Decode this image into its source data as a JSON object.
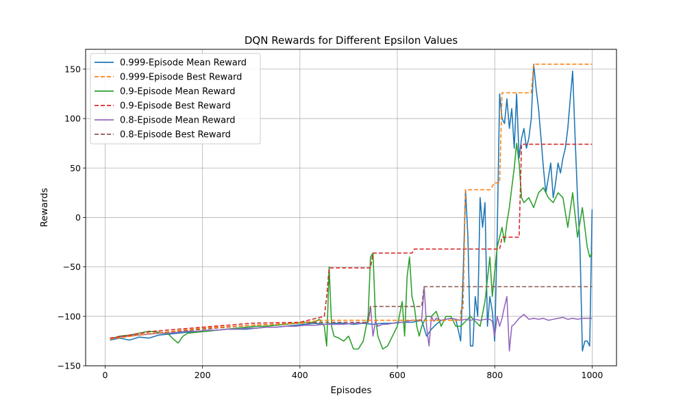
{
  "chart_data": {
    "type": "line",
    "title": "DQN Rewards for Different Epsilon Values",
    "xlabel": "Episodes",
    "ylabel": "Rewards",
    "xlim": [
      -40,
      1050
    ],
    "ylim": [
      -150,
      170
    ],
    "xticks": [
      0,
      200,
      400,
      600,
      800,
      1000
    ],
    "yticks": [
      -150,
      -100,
      -50,
      0,
      50,
      100,
      150
    ],
    "grid": true,
    "legend": "top-left",
    "series": [
      {
        "name": "0.999-Episode Mean Reward",
        "color": "#1f77b4",
        "dash": "solid",
        "x": [
          10,
          30,
          50,
          70,
          90,
          110,
          130,
          150,
          170,
          190,
          210,
          230,
          250,
          270,
          290,
          310,
          330,
          350,
          370,
          390,
          410,
          430,
          450,
          470,
          490,
          510,
          530,
          550,
          570,
          590,
          610,
          630,
          650,
          660,
          670,
          680,
          690,
          700,
          710,
          720,
          730,
          735,
          740,
          745,
          750,
          755,
          760,
          765,
          770,
          775,
          780,
          785,
          790,
          795,
          800,
          805,
          810,
          815,
          820,
          825,
          830,
          835,
          840,
          845,
          850,
          855,
          860,
          865,
          870,
          875,
          880,
          885,
          890,
          895,
          900,
          905,
          910,
          915,
          920,
          925,
          930,
          935,
          940,
          945,
          950,
          955,
          960,
          965,
          970,
          975,
          980,
          985,
          990,
          995,
          1000
        ],
        "y": [
          -124,
          -122,
          -124,
          -121,
          -122,
          -119,
          -118,
          -117,
          -116,
          -115,
          -115,
          -114,
          -113,
          -113,
          -113,
          -112,
          -111,
          -111,
          -110,
          -109,
          -108,
          -107,
          -108,
          -107,
          -107,
          -108,
          -107,
          -108,
          -107,
          -107,
          -106,
          -106,
          -104,
          -120,
          -113,
          -108,
          -104,
          -103,
          -102,
          -103,
          -125,
          -60,
          28,
          -20,
          -130,
          -130,
          -80,
          -100,
          20,
          -10,
          15,
          -110,
          -80,
          -95,
          -125,
          -20,
          125,
          100,
          95,
          120,
          90,
          110,
          70,
          125,
          60,
          80,
          90,
          70,
          80,
          100,
          155,
          130,
          110,
          80,
          50,
          25,
          40,
          55,
          20,
          35,
          55,
          45,
          60,
          70,
          90,
          120,
          148,
          80,
          20,
          -30,
          -135,
          -125,
          -125,
          -130,
          8
        ]
      },
      {
        "name": "0.999-Episode Best Reward",
        "color": "#ff7f0e",
        "dash": "dashed",
        "x": [
          10,
          100,
          200,
          300,
          400,
          440,
          440,
          730,
          730,
          735,
          740,
          790,
          800,
          810,
          815,
          875,
          880,
          1000
        ],
        "y": [
          -123,
          -117,
          -112,
          -109,
          -107,
          -104,
          -104,
          -104,
          -92,
          -92,
          28,
          28,
          35,
          35,
          126,
          126,
          155,
          155
        ]
      },
      {
        "name": "0.9-Episode Mean Reward",
        "color": "#2ca02c",
        "dash": "solid",
        "x": [
          10,
          30,
          50,
          70,
          90,
          110,
          130,
          140,
          150,
          160,
          170,
          190,
          210,
          230,
          250,
          270,
          290,
          310,
          330,
          350,
          370,
          390,
          410,
          430,
          440,
          450,
          455,
          460,
          465,
          470,
          480,
          490,
          500,
          510,
          520,
          530,
          540,
          545,
          550,
          555,
          560,
          570,
          580,
          590,
          600,
          610,
          615,
          620,
          625,
          630,
          635,
          640,
          645,
          650,
          660,
          670,
          680,
          690,
          700,
          710,
          720,
          730,
          740,
          750,
          760,
          770,
          780,
          790,
          795,
          800,
          805,
          810,
          815,
          820,
          825,
          830,
          835,
          840,
          845,
          850,
          855,
          860,
          870,
          880,
          890,
          900,
          910,
          920,
          930,
          940,
          950,
          960,
          970,
          980,
          990,
          995,
          1000
        ],
        "y": [
          -123,
          -120,
          -119,
          -117,
          -115,
          -116,
          -118,
          -123,
          -127,
          -120,
          -117,
          -116,
          -115,
          -114,
          -113,
          -112,
          -111,
          -110,
          -110,
          -109,
          -108,
          -107,
          -106,
          -106,
          -103,
          -110,
          -130,
          -50,
          -110,
          -120,
          -122,
          -125,
          -120,
          -133,
          -133,
          -125,
          -100,
          -40,
          -36,
          -100,
          -120,
          -133,
          -130,
          -120,
          -110,
          -85,
          -120,
          -60,
          -40,
          -80,
          -90,
          -110,
          -120,
          -110,
          -100,
          -100,
          -95,
          -110,
          -100,
          -100,
          -110,
          -110,
          -105,
          -100,
          -105,
          -110,
          -85,
          -40,
          -80,
          -55,
          -30,
          -20,
          -10,
          -25,
          -5,
          10,
          30,
          50,
          75,
          55,
          20,
          15,
          20,
          10,
          25,
          30,
          20,
          15,
          25,
          20,
          -10,
          25,
          -20,
          10,
          -30,
          -40,
          -36
        ]
      },
      {
        "name": "0.9-Episode Best Reward",
        "color": "#d62728",
        "dash": "dashed",
        "x": [
          10,
          100,
          200,
          300,
          400,
          450,
          455,
          460,
          545,
          550,
          630,
          635,
          735,
          810,
          815,
          850,
          855,
          1000
        ],
        "y": [
          -122,
          -115,
          -111,
          -107,
          -106,
          -100,
          -80,
          -51,
          -51,
          -36,
          -36,
          -32,
          -32,
          -32,
          -20,
          -20,
          74,
          74
        ]
      },
      {
        "name": "0.8-Episode Mean Reward",
        "color": "#9467bd",
        "dash": "solid",
        "x": [
          10,
          30,
          50,
          70,
          90,
          110,
          130,
          150,
          170,
          190,
          210,
          230,
          250,
          270,
          290,
          310,
          330,
          350,
          370,
          390,
          410,
          430,
          450,
          470,
          490,
          510,
          530,
          540,
          545,
          550,
          555,
          560,
          570,
          580,
          590,
          600,
          610,
          620,
          630,
          640,
          650,
          655,
          660,
          665,
          670,
          675,
          680,
          690,
          700,
          710,
          720,
          730,
          740,
          750,
          760,
          770,
          780,
          790,
          795,
          800,
          805,
          810,
          815,
          820,
          825,
          830,
          835,
          840,
          845,
          850,
          860,
          870,
          880,
          890,
          900,
          910,
          920,
          930,
          940,
          950,
          960,
          970,
          980,
          990,
          1000
        ],
        "y": [
          -123,
          -121,
          -120,
          -119,
          -118,
          -117,
          -117,
          -116,
          -115,
          -115,
          -114,
          -114,
          -113,
          -113,
          -112,
          -112,
          -111,
          -111,
          -110,
          -110,
          -109,
          -109,
          -108,
          -108,
          -108,
          -107,
          -107,
          -106,
          -90,
          -120,
          -105,
          -110,
          -108,
          -108,
          -107,
          -106,
          -106,
          -105,
          -104,
          -104,
          -103,
          -70,
          -110,
          -130,
          -100,
          -105,
          -102,
          -104,
          -103,
          -102,
          -103,
          -104,
          -103,
          -104,
          -103,
          -104,
          -103,
          -103,
          -105,
          -120,
          -100,
          -110,
          -102,
          -90,
          -80,
          -135,
          -110,
          -108,
          -105,
          -102,
          -98,
          -103,
          -102,
          -103,
          -102,
          -104,
          -103,
          -102,
          -101,
          -103,
          -102,
          -103,
          -102,
          -102,
          -102
        ]
      },
      {
        "name": "0.8-Episode Best Reward",
        "color": "#8c564b",
        "dash": "dashed",
        "x": [
          10,
          100,
          200,
          300,
          400,
          450,
          540,
          545,
          650,
          655,
          1000
        ],
        "y": [
          -122,
          -117,
          -113,
          -109,
          -107,
          -106,
          -106,
          -90,
          -90,
          -70,
          -70
        ]
      }
    ]
  }
}
